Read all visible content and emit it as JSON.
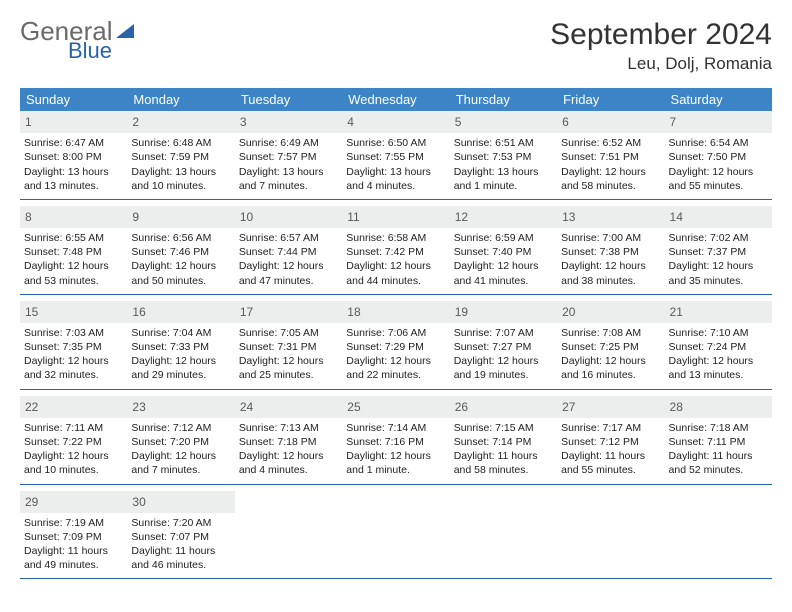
{
  "brand": {
    "word1": "General",
    "word2": "Blue"
  },
  "title": "September 2024",
  "location": "Leu, Dolj, Romania",
  "colors": {
    "header_bg": "#3d84c6",
    "rule": "#2a64a8",
    "daynum_bg": "#eceeee",
    "logo_gray": "#6a6a6a",
    "logo_blue": "#2a64a8"
  },
  "weekdays": [
    "Sunday",
    "Monday",
    "Tuesday",
    "Wednesday",
    "Thursday",
    "Friday",
    "Saturday"
  ],
  "weeks": [
    [
      {
        "n": "1",
        "sunrise": "Sunrise: 6:47 AM",
        "sunset": "Sunset: 8:00 PM",
        "day1": "Daylight: 13 hours",
        "day2": "and 13 minutes."
      },
      {
        "n": "2",
        "sunrise": "Sunrise: 6:48 AM",
        "sunset": "Sunset: 7:59 PM",
        "day1": "Daylight: 13 hours",
        "day2": "and 10 minutes."
      },
      {
        "n": "3",
        "sunrise": "Sunrise: 6:49 AM",
        "sunset": "Sunset: 7:57 PM",
        "day1": "Daylight: 13 hours",
        "day2": "and 7 minutes."
      },
      {
        "n": "4",
        "sunrise": "Sunrise: 6:50 AM",
        "sunset": "Sunset: 7:55 PM",
        "day1": "Daylight: 13 hours",
        "day2": "and 4 minutes."
      },
      {
        "n": "5",
        "sunrise": "Sunrise: 6:51 AM",
        "sunset": "Sunset: 7:53 PM",
        "day1": "Daylight: 13 hours",
        "day2": "and 1 minute."
      },
      {
        "n": "6",
        "sunrise": "Sunrise: 6:52 AM",
        "sunset": "Sunset: 7:51 PM",
        "day1": "Daylight: 12 hours",
        "day2": "and 58 minutes."
      },
      {
        "n": "7",
        "sunrise": "Sunrise: 6:54 AM",
        "sunset": "Sunset: 7:50 PM",
        "day1": "Daylight: 12 hours",
        "day2": "and 55 minutes."
      }
    ],
    [
      {
        "n": "8",
        "sunrise": "Sunrise: 6:55 AM",
        "sunset": "Sunset: 7:48 PM",
        "day1": "Daylight: 12 hours",
        "day2": "and 53 minutes."
      },
      {
        "n": "9",
        "sunrise": "Sunrise: 6:56 AM",
        "sunset": "Sunset: 7:46 PM",
        "day1": "Daylight: 12 hours",
        "day2": "and 50 minutes."
      },
      {
        "n": "10",
        "sunrise": "Sunrise: 6:57 AM",
        "sunset": "Sunset: 7:44 PM",
        "day1": "Daylight: 12 hours",
        "day2": "and 47 minutes."
      },
      {
        "n": "11",
        "sunrise": "Sunrise: 6:58 AM",
        "sunset": "Sunset: 7:42 PM",
        "day1": "Daylight: 12 hours",
        "day2": "and 44 minutes."
      },
      {
        "n": "12",
        "sunrise": "Sunrise: 6:59 AM",
        "sunset": "Sunset: 7:40 PM",
        "day1": "Daylight: 12 hours",
        "day2": "and 41 minutes."
      },
      {
        "n": "13",
        "sunrise": "Sunrise: 7:00 AM",
        "sunset": "Sunset: 7:38 PM",
        "day1": "Daylight: 12 hours",
        "day2": "and 38 minutes."
      },
      {
        "n": "14",
        "sunrise": "Sunrise: 7:02 AM",
        "sunset": "Sunset: 7:37 PM",
        "day1": "Daylight: 12 hours",
        "day2": "and 35 minutes."
      }
    ],
    [
      {
        "n": "15",
        "sunrise": "Sunrise: 7:03 AM",
        "sunset": "Sunset: 7:35 PM",
        "day1": "Daylight: 12 hours",
        "day2": "and 32 minutes."
      },
      {
        "n": "16",
        "sunrise": "Sunrise: 7:04 AM",
        "sunset": "Sunset: 7:33 PM",
        "day1": "Daylight: 12 hours",
        "day2": "and 29 minutes."
      },
      {
        "n": "17",
        "sunrise": "Sunrise: 7:05 AM",
        "sunset": "Sunset: 7:31 PM",
        "day1": "Daylight: 12 hours",
        "day2": "and 25 minutes."
      },
      {
        "n": "18",
        "sunrise": "Sunrise: 7:06 AM",
        "sunset": "Sunset: 7:29 PM",
        "day1": "Daylight: 12 hours",
        "day2": "and 22 minutes."
      },
      {
        "n": "19",
        "sunrise": "Sunrise: 7:07 AM",
        "sunset": "Sunset: 7:27 PM",
        "day1": "Daylight: 12 hours",
        "day2": "and 19 minutes."
      },
      {
        "n": "20",
        "sunrise": "Sunrise: 7:08 AM",
        "sunset": "Sunset: 7:25 PM",
        "day1": "Daylight: 12 hours",
        "day2": "and 16 minutes."
      },
      {
        "n": "21",
        "sunrise": "Sunrise: 7:10 AM",
        "sunset": "Sunset: 7:24 PM",
        "day1": "Daylight: 12 hours",
        "day2": "and 13 minutes."
      }
    ],
    [
      {
        "n": "22",
        "sunrise": "Sunrise: 7:11 AM",
        "sunset": "Sunset: 7:22 PM",
        "day1": "Daylight: 12 hours",
        "day2": "and 10 minutes."
      },
      {
        "n": "23",
        "sunrise": "Sunrise: 7:12 AM",
        "sunset": "Sunset: 7:20 PM",
        "day1": "Daylight: 12 hours",
        "day2": "and 7 minutes."
      },
      {
        "n": "24",
        "sunrise": "Sunrise: 7:13 AM",
        "sunset": "Sunset: 7:18 PM",
        "day1": "Daylight: 12 hours",
        "day2": "and 4 minutes."
      },
      {
        "n": "25",
        "sunrise": "Sunrise: 7:14 AM",
        "sunset": "Sunset: 7:16 PM",
        "day1": "Daylight: 12 hours",
        "day2": "and 1 minute."
      },
      {
        "n": "26",
        "sunrise": "Sunrise: 7:15 AM",
        "sunset": "Sunset: 7:14 PM",
        "day1": "Daylight: 11 hours",
        "day2": "and 58 minutes."
      },
      {
        "n": "27",
        "sunrise": "Sunrise: 7:17 AM",
        "sunset": "Sunset: 7:12 PM",
        "day1": "Daylight: 11 hours",
        "day2": "and 55 minutes."
      },
      {
        "n": "28",
        "sunrise": "Sunrise: 7:18 AM",
        "sunset": "Sunset: 7:11 PM",
        "day1": "Daylight: 11 hours",
        "day2": "and 52 minutes."
      }
    ],
    [
      {
        "n": "29",
        "sunrise": "Sunrise: 7:19 AM",
        "sunset": "Sunset: 7:09 PM",
        "day1": "Daylight: 11 hours",
        "day2": "and 49 minutes."
      },
      {
        "n": "30",
        "sunrise": "Sunrise: 7:20 AM",
        "sunset": "Sunset: 7:07 PM",
        "day1": "Daylight: 11 hours",
        "day2": "and 46 minutes."
      },
      null,
      null,
      null,
      null,
      null
    ]
  ]
}
